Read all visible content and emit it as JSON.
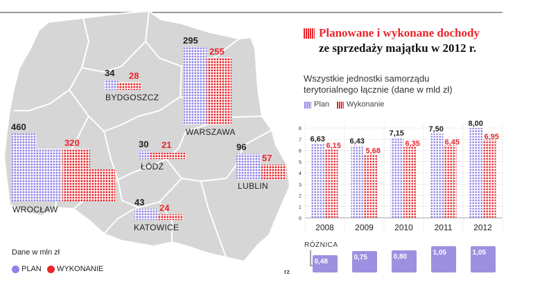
{
  "title": {
    "line1": "Planowane i wykonane dochody",
    "line2": "ze sprzedaży majątku w 2012 r."
  },
  "subtitle": "Wszystkie jednostki samorządu terytorialnego łącznie (dane w mld zł)",
  "colors": {
    "plan": "#8f83e6",
    "wykonanie": "#e8262b",
    "map_fill": "#d3d3d3",
    "diff_box": "#9e90e0"
  },
  "map": {
    "unit_label": "Dane w mln zł",
    "legend": {
      "plan": "PLAN",
      "wykonanie": "WYKONANIE"
    },
    "cities": [
      {
        "name": "BYDGOSZCZ",
        "plan": 34,
        "wykonanie": 28
      },
      {
        "name": "WARSZAWA",
        "plan": 295,
        "wykonanie": 255
      },
      {
        "name": "WROCŁAW",
        "plan": 460,
        "wykonanie": 320
      },
      {
        "name": "ŁÓDŹ",
        "plan": 30,
        "wykonanie": 21
      },
      {
        "name": "LUBLIN",
        "plan": 96,
        "wykonanie": 57
      },
      {
        "name": "KATOWICE",
        "plan": 43,
        "wykonanie": 24
      }
    ]
  },
  "chart_data": {
    "type": "bar",
    "title": "Planowane i wykonane dochody ze sprzedaży majątku w 2012 r.",
    "subtitle": "Wszystkie jednostki samorządu terytorialnego łącznie (dane w mld zł)",
    "categories": [
      "2008",
      "2009",
      "2010",
      "2011",
      "2012"
    ],
    "series": [
      {
        "name": "Plan",
        "values": [
          6.63,
          6.43,
          7.15,
          7.5,
          8.0
        ],
        "labels": [
          "6,63",
          "6,43",
          "7,15",
          "7,50",
          "8,00"
        ],
        "color": "#8f83e6"
      },
      {
        "name": "Wykonanie",
        "values": [
          6.15,
          5.68,
          6.35,
          6.45,
          6.95
        ],
        "labels": [
          "6,15",
          "5,68",
          "6,35",
          "6,45",
          "6,95"
        ],
        "color": "#e8262b"
      }
    ],
    "y_ticks": [
      "0",
      "1",
      "2",
      "3",
      "4",
      "5",
      "6",
      "7",
      "8"
    ],
    "ylim": [
      0,
      8
    ],
    "legend": {
      "plan": "Plan",
      "wykonanie": "Wykonanie",
      "position": "top-left"
    },
    "difference": {
      "label": "RÓŻNICA",
      "values": [
        0.48,
        0.75,
        0.8,
        1.05,
        1.05
      ],
      "labels": [
        "0,48",
        "0,75",
        "0,80",
        "1,05",
        "1,05"
      ]
    },
    "grid": true
  },
  "logo": "rz"
}
